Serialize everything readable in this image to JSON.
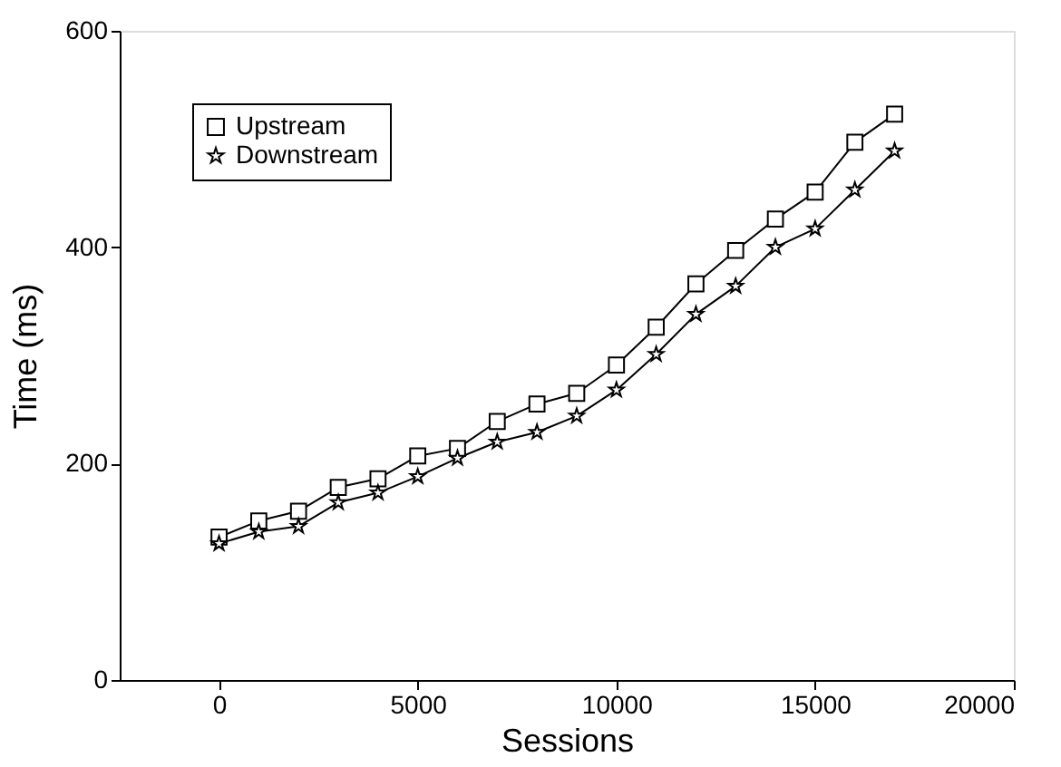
{
  "chart_data": {
    "type": "line",
    "xlabel": "Sessions",
    "ylabel": "Time (ms)",
    "x": [
      0,
      1000,
      2000,
      3000,
      4000,
      5000,
      6000,
      7000,
      8000,
      9000,
      10000,
      11000,
      12000,
      13000,
      14000,
      15000,
      16000,
      17000
    ],
    "series": [
      {
        "name": "Upstream",
        "color": "#000000",
        "marker": "square",
        "values": [
          132,
          147,
          156,
          178,
          186,
          207,
          214,
          239,
          255,
          265,
          291,
          326,
          366,
          397,
          426,
          451,
          497,
          523
        ]
      },
      {
        "name": "Downstream",
        "color": "#000000",
        "marker": "star",
        "values": [
          126,
          137,
          142,
          164,
          173,
          188,
          205,
          220,
          229,
          244,
          268,
          301,
          338,
          364,
          400,
          417,
          453,
          489
        ]
      }
    ],
    "xlim": [
      -2500,
      20000
    ],
    "xticks": [
      0,
      5000,
      10000,
      15000,
      20000
    ],
    "ylim": [
      0,
      600
    ],
    "yticks": [
      0,
      200,
      400,
      600
    ],
    "grid": false,
    "legend": "top left",
    "line_style": "solid"
  }
}
